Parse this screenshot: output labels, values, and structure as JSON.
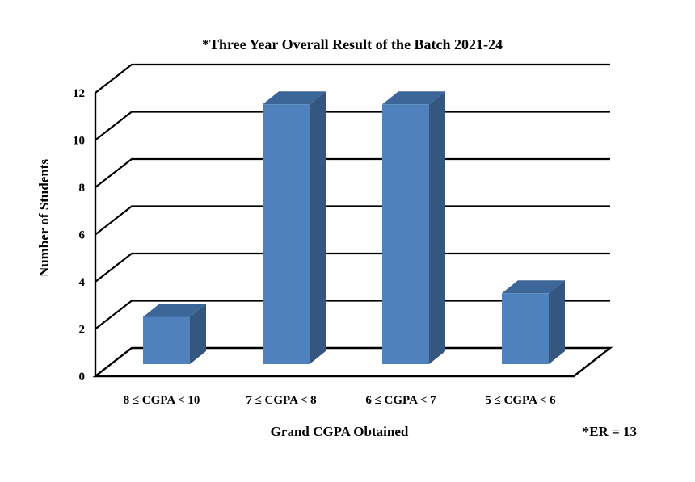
{
  "chart_data": {
    "type": "bar",
    "title": "*Three Year Overall Result of the Batch 2021-24",
    "xlabel": "Grand CGPA Obtained",
    "ylabel": "Number of Students",
    "categories": [
      "8 ≤ CGPA < 10",
      "7 ≤ CGPA < 8",
      "6 ≤ CGPA < 7",
      "5 ≤ CGPA < 6"
    ],
    "values": [
      2,
      11,
      11,
      3
    ],
    "ylim": [
      0,
      12
    ],
    "yticks": [
      0,
      2,
      4,
      6,
      8,
      10,
      12
    ],
    "grid": true,
    "bar_color": "#4F81BD",
    "bar_side_color": "#34567F",
    "bar_top_color": "#3D6698",
    "annotation": "*ER = 13"
  }
}
